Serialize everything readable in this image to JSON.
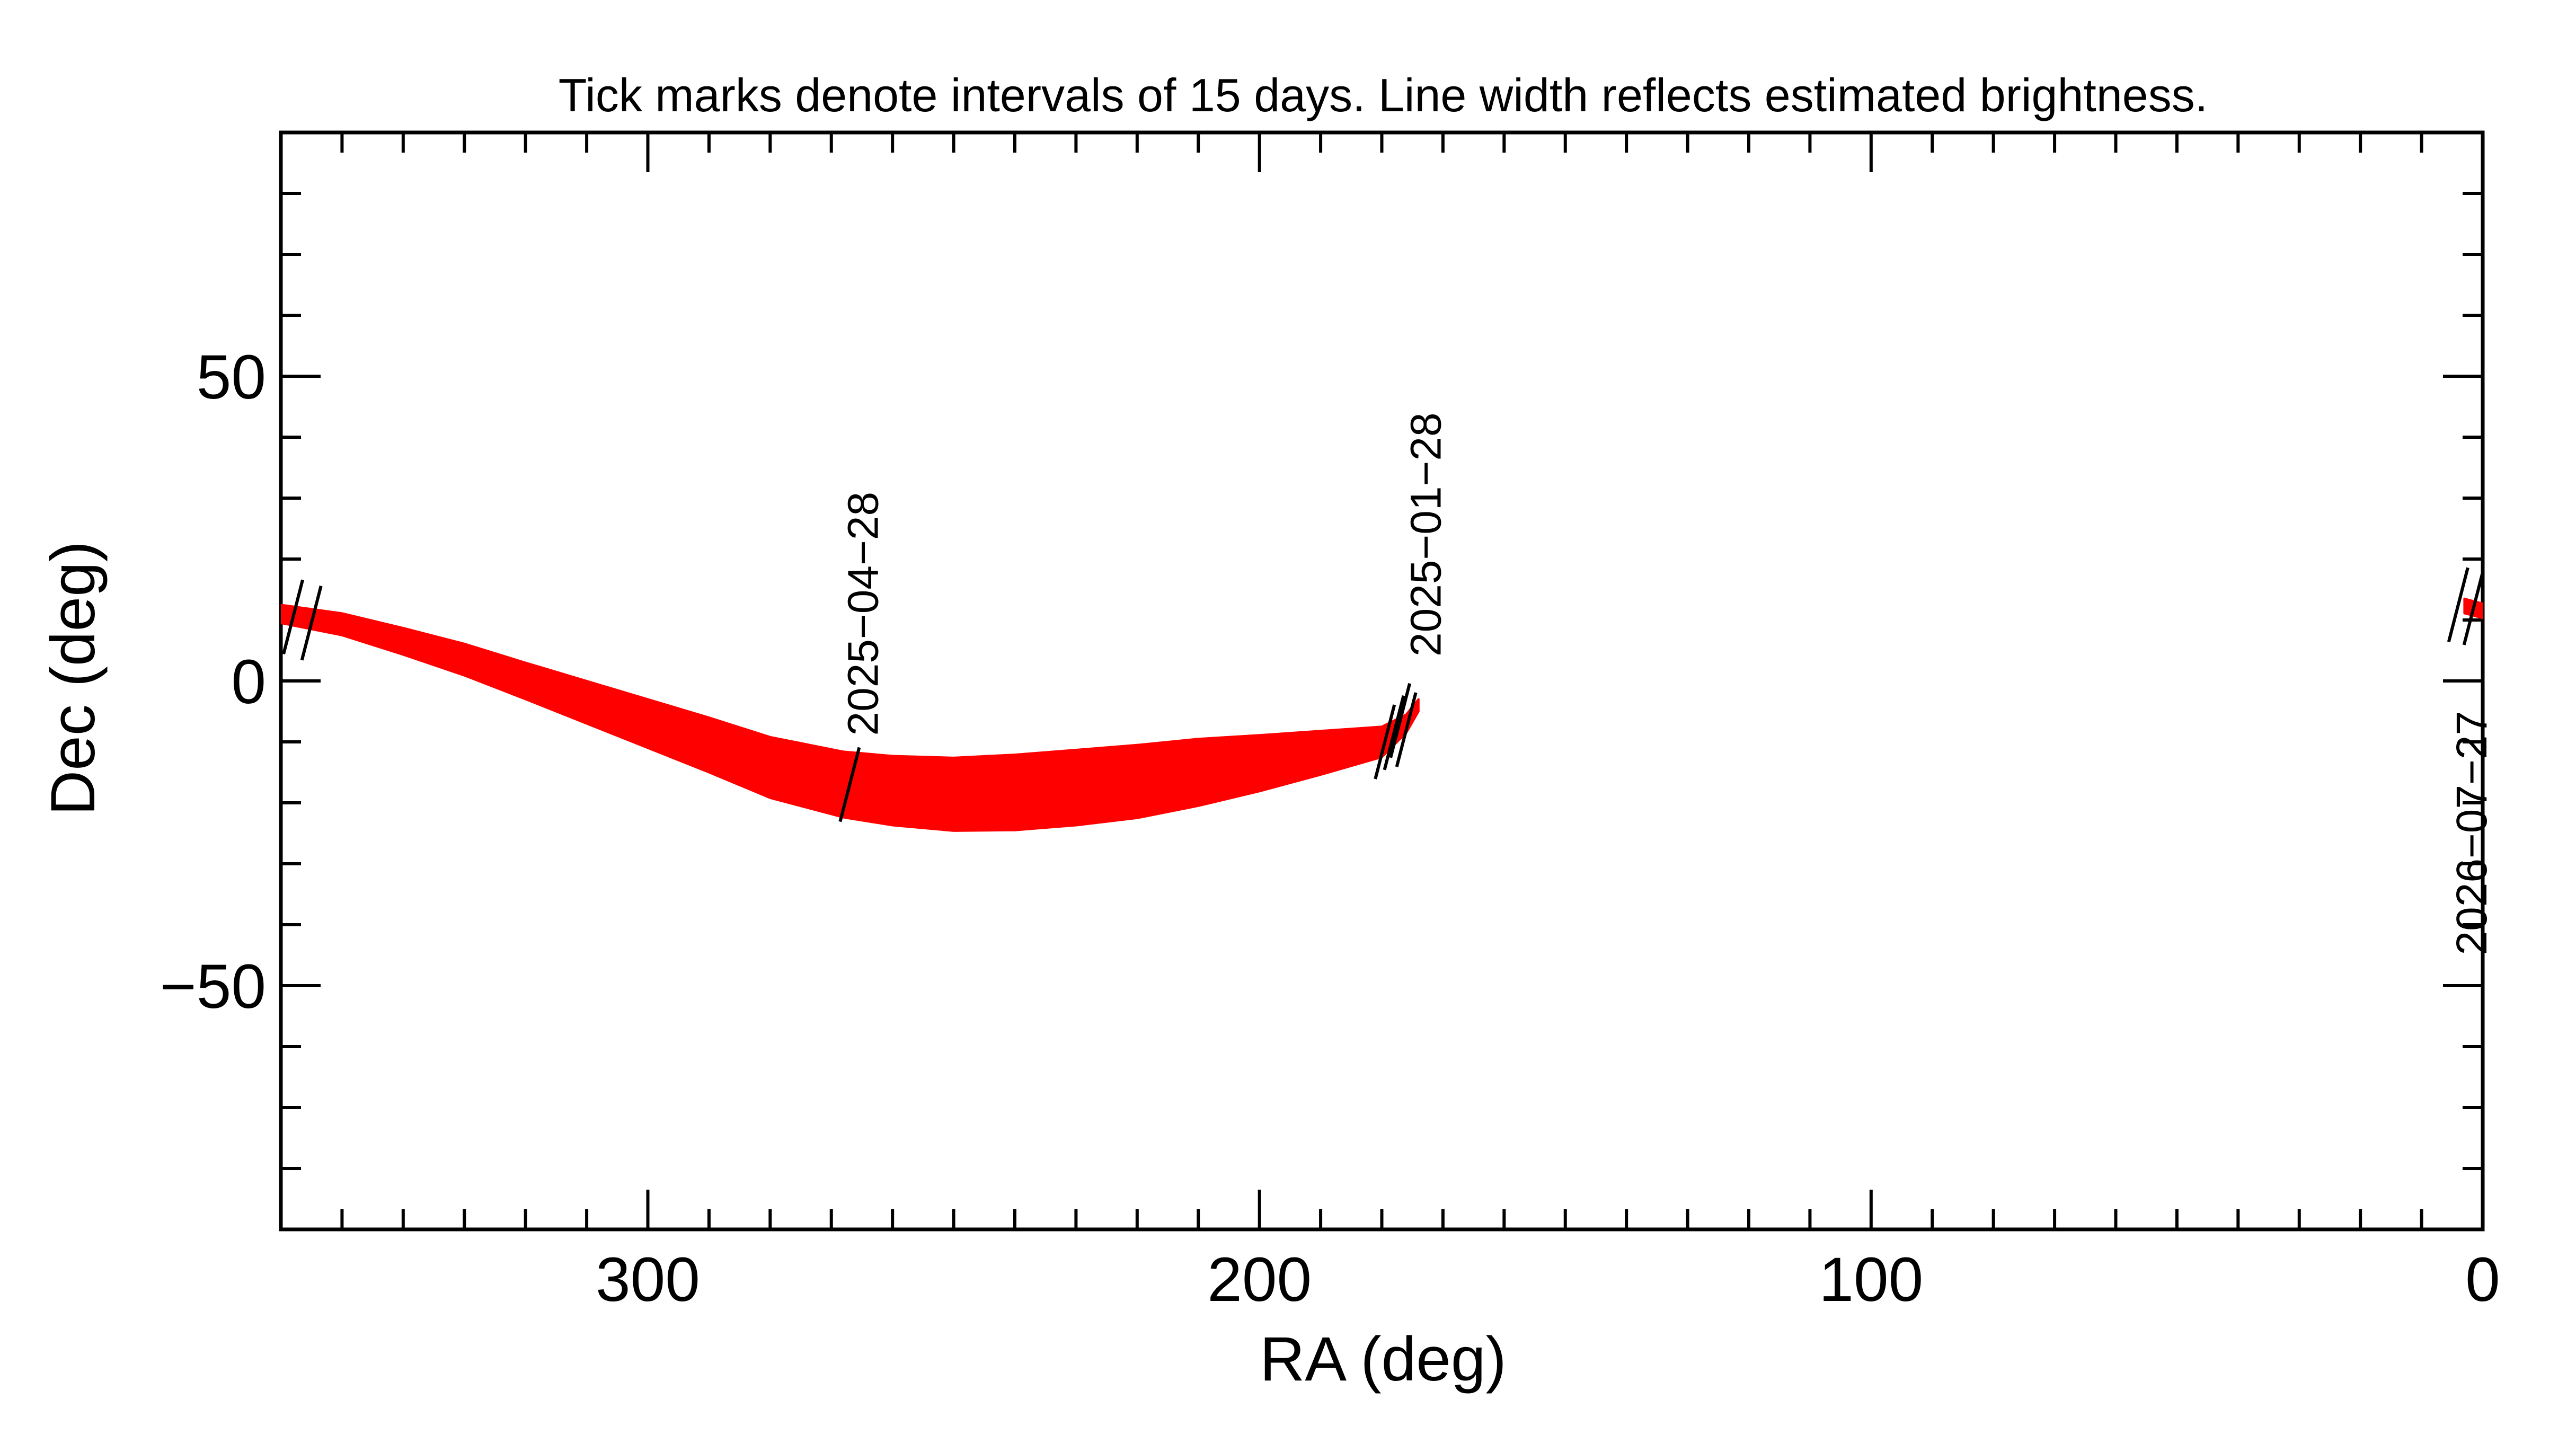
{
  "chart_data": {
    "type": "line",
    "title": "Tick marks denote intervals of 15 days.  Line width reflects estimated brightness.",
    "xlabel": "RA (deg)",
    "ylabel": "Dec (deg)",
    "xlim": [
      360,
      0
    ],
    "ylim": [
      -90,
      90
    ],
    "x_ticks": [
      300,
      200,
      100,
      0
    ],
    "x_tick_labels": [
      "300",
      "200",
      "100",
      "0"
    ],
    "y_ticks": [
      50,
      0,
      -50
    ],
    "y_tick_labels": [
      "50",
      "0",
      "−50"
    ],
    "x_minor_step": 10,
    "y_minor_step": 10,
    "grid": false,
    "legend": "none",
    "series": [
      {
        "color": "#ff0000",
        "points": [
          {
            "ra": 174,
            "dec": -4,
            "width": 1.0
          },
          {
            "ra": 176,
            "dec": -7,
            "width": 1.5
          },
          {
            "ra": 180,
            "dec": -10,
            "width": 2.5
          },
          {
            "ra": 190,
            "dec": -11.8,
            "width": 3.6
          },
          {
            "ra": 200,
            "dec": -13.5,
            "width": 4.6
          },
          {
            "ra": 210,
            "dec": -15.0,
            "width": 5.5
          },
          {
            "ra": 220,
            "dec": -16.5,
            "width": 6.0
          },
          {
            "ra": 230,
            "dec": -17.5,
            "width": 6.2
          },
          {
            "ra": 240,
            "dec": -18.3,
            "width": 6.2
          },
          {
            "ra": 250,
            "dec": -18.6,
            "width": 6.0
          },
          {
            "ra": 260,
            "dec": -18.0,
            "width": 5.7
          },
          {
            "ra": 268,
            "dec": -17.0,
            "width": 5.4
          },
          {
            "ra": 280,
            "dec": -14.2,
            "width": 5.0
          },
          {
            "ra": 290,
            "dec": -10.5,
            "width": 4.5
          },
          {
            "ra": 300,
            "dec": -7.0,
            "width": 4.0
          },
          {
            "ra": 310,
            "dec": -3.5,
            "width": 3.5
          },
          {
            "ra": 320,
            "dec": 0.0,
            "width": 3.0
          },
          {
            "ra": 330,
            "dec": 3.5,
            "width": 2.6
          },
          {
            "ra": 340,
            "dec": 6.5,
            "width": 2.2
          },
          {
            "ra": 350,
            "dec": 9.3,
            "width": 1.8
          },
          {
            "ra": 360,
            "dec": 11.0,
            "width": 1.5
          }
        ],
        "wrap_points": [
          {
            "ra": 3,
            "dec": 12.3,
            "width": 1.2
          },
          {
            "ra": 0,
            "dec": 11.5,
            "width": 1.2
          }
        ]
      }
    ],
    "tick_marks": [
      {
        "ra": 267,
        "dec": -17
      },
      {
        "ra": 177,
        "dec": -6.5
      },
      {
        "ra": 178,
        "dec": -8.5
      },
      {
        "ra": 179.5,
        "dec": -10
      },
      {
        "ra": 176,
        "dec": -8
      },
      {
        "ra": 358,
        "dec": 10.5
      },
      {
        "ra": 355,
        "dec": 9.5
      },
      {
        "ra": 4,
        "dec": 12.5
      },
      {
        "ra": 1.5,
        "dec": 12
      }
    ],
    "annotations": [
      {
        "text": "2025−04−28",
        "ra": 265,
        "dec": -9
      },
      {
        "text": "2025−01−28",
        "ra": 173,
        "dec": 4
      },
      {
        "text": "2026−07−27",
        "ra": 2,
        "dec": -45
      }
    ]
  }
}
